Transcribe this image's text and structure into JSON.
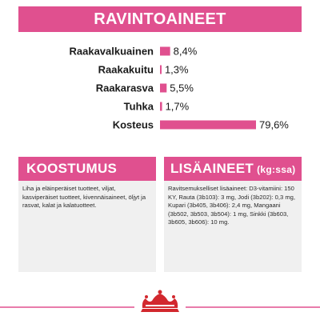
{
  "header": {
    "title": "RAVINTOAINEET"
  },
  "chart_data": {
    "type": "bar",
    "categories": [
      "Raakavalkuainen",
      "Raakakuitu",
      "Raakarasva",
      "Tuhka",
      "Kosteus"
    ],
    "values": [
      8.4,
      1.3,
      5.5,
      1.7,
      79.6
    ],
    "value_labels": [
      "8,4%",
      "1,3%",
      "5,5%",
      "1,7%",
      "79,6%"
    ],
    "title": "RAVINTOAINEET",
    "xlabel": "",
    "ylabel": "",
    "xlim": [
      0,
      100
    ],
    "grid": false,
    "color": "#e0508f"
  },
  "composition": {
    "title": "KOOSTUMUS",
    "text": "Liha ja eläinperäiset tuotteet, viljat, kasviperäiset tuotteet, kivennäisaineet, öljyt ja rasvat, kalat ja kalatuotteet."
  },
  "additives": {
    "title": "LISÄAINEET",
    "unit": "(kg:ssa)",
    "text": "Ravitsemukselliset lisäaineet: D3-vitamiini: 150 KY, Rauta (3b103): 3 mg, Jodi (3b202): 0,3 mg, Kupari (3b405, 3b406): 2,4 mg, Mangaani (3b502, 3b503, 3b504): 1 mg, Sinkki (3b603, 3b605, 3b606): 10 mg."
  },
  "colors": {
    "accent": "#e0508f",
    "box_bg": "#f0f0f0",
    "footer_line": "#e0508f",
    "logo": "#d2282e"
  },
  "footer": {
    "logo_icon": "crown-icon"
  }
}
